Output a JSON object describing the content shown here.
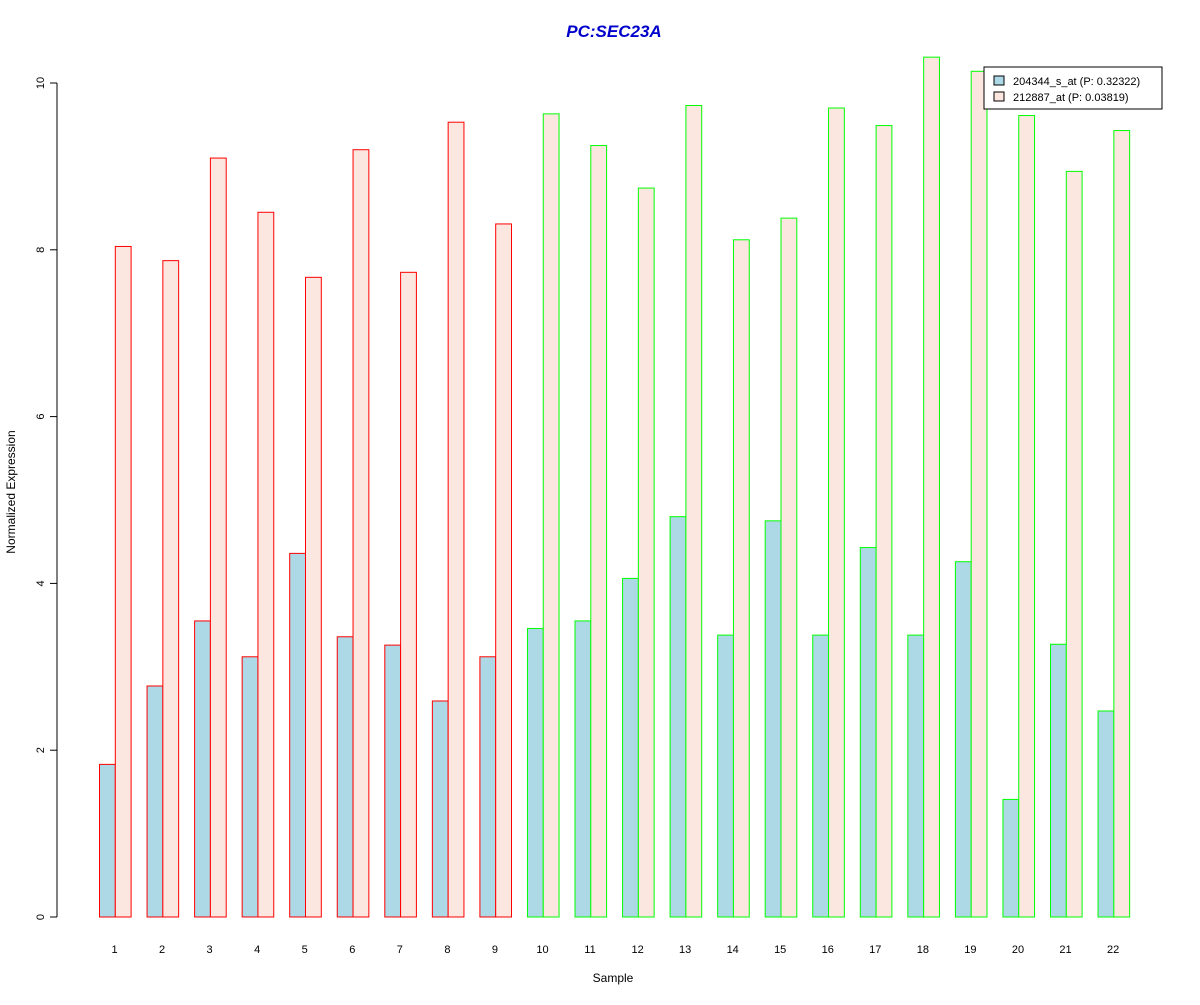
{
  "chart_data": {
    "type": "bar",
    "title": "PC:SEC23A",
    "xlabel": "Sample",
    "ylabel": "Normalized Expression",
    "categories": [
      "1",
      "2",
      "3",
      "4",
      "5",
      "6",
      "7",
      "8",
      "9",
      "10",
      "11",
      "12",
      "13",
      "14",
      "15",
      "16",
      "17",
      "18",
      "19",
      "20",
      "21",
      "22"
    ],
    "series": [
      {
        "name": "204344_s_at (P: 0.32322)",
        "fill": "#add8e6",
        "values": [
          1.83,
          2.77,
          3.55,
          3.12,
          4.36,
          3.36,
          3.26,
          2.59,
          3.12,
          3.46,
          3.55,
          4.06,
          4.8,
          3.38,
          4.75,
          3.38,
          4.43,
          3.38,
          4.26,
          1.41,
          3.27,
          2.47
        ]
      },
      {
        "name": "212887_at (P: 0.03819)",
        "fill": "#fce6e0",
        "values": [
          8.04,
          7.87,
          9.1,
          8.45,
          7.67,
          9.2,
          7.73,
          9.53,
          8.31,
          9.63,
          9.25,
          8.74,
          9.73,
          8.12,
          8.38,
          9.7,
          9.49,
          10.31,
          10.14,
          9.61,
          8.94,
          9.43
        ]
      }
    ],
    "group_colors": [
      "#ff0000",
      "#ff0000",
      "#ff0000",
      "#ff0000",
      "#ff0000",
      "#ff0000",
      "#ff0000",
      "#ff0000",
      "#ff0000",
      "#00ff00",
      "#00ff00",
      "#00ff00",
      "#00ff00",
      "#00ff00",
      "#00ff00",
      "#00ff00",
      "#00ff00",
      "#00ff00",
      "#00ff00",
      "#00ff00",
      "#00ff00",
      "#00ff00"
    ],
    "ylim": [
      0,
      10.4
    ],
    "yticks": [
      0,
      2,
      4,
      6,
      8,
      10
    ],
    "grid": false,
    "legend_position": "top-right",
    "title_color": "#0000cd"
  }
}
